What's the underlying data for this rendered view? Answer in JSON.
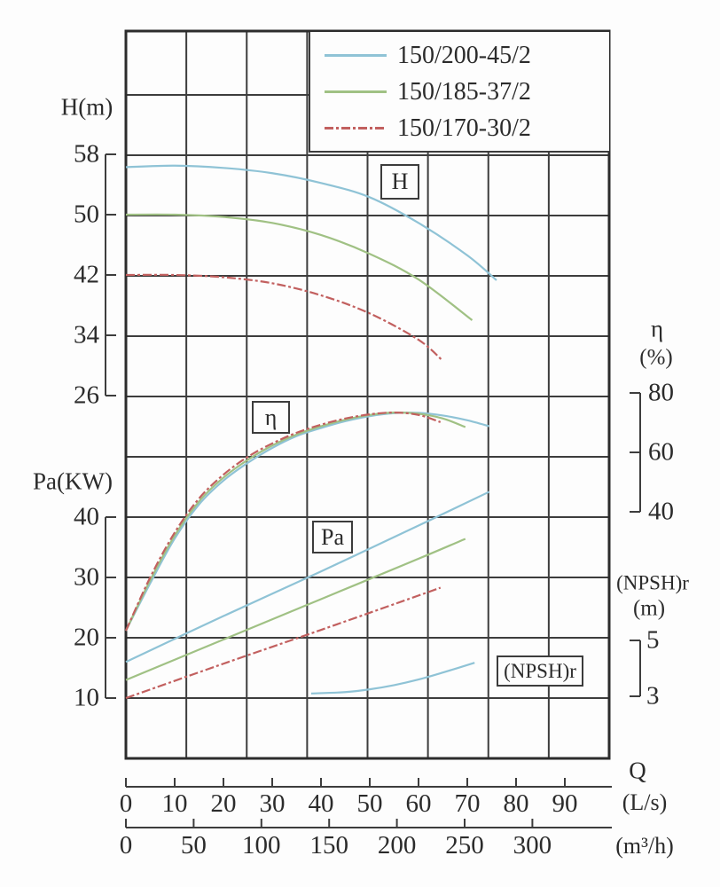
{
  "figure": {
    "background": "#fdfdfd",
    "grid_color": "#3d3d3d",
    "border_color": "#2c2c2c",
    "text_color": "#2b2b2b"
  },
  "legend": {
    "entries": [
      {
        "label": "150/200-45/2",
        "color": "#8fc3d6",
        "line_style": "solid"
      },
      {
        "label": "150/185-37/2",
        "color": "#a0c184",
        "line_style": "solid"
      },
      {
        "label": "150/170-30/2",
        "color": "#c2605f",
        "line_style": "dashdot"
      }
    ]
  },
  "axes": {
    "head": {
      "title": "H(m)",
      "ticks": [
        58,
        50,
        42,
        34,
        26
      ]
    },
    "power": {
      "title": "Pa(KW)",
      "ticks": [
        40,
        30,
        20,
        10
      ]
    },
    "efficiency": {
      "symbol": "η",
      "unit": "(%)",
      "ticks": [
        80,
        60,
        40
      ]
    },
    "npsh": {
      "title": "(NPSH)r",
      "unit": "(m)",
      "ticks": [
        5,
        3
      ]
    },
    "flow": {
      "symbol": "Q",
      "unit_ls": "(L/s)",
      "ticks_ls": [
        0,
        10,
        20,
        30,
        40,
        50,
        60,
        70,
        80,
        90
      ],
      "unit_m3h": "(m³/h)",
      "ticks_m3h": [
        0,
        50,
        100,
        150,
        200,
        250,
        300
      ]
    }
  },
  "annotations": {
    "h_box": "H",
    "eta_box": "η",
    "pa_box": "Pa",
    "npsh_box": "(NPSH)r"
  },
  "chart_data": {
    "type": "line",
    "title": "",
    "xlabel": "Q",
    "x_units": [
      "L/s",
      "m³/h"
    ],
    "x_range_ls": [
      0,
      99
    ],
    "grid": true,
    "legend_position": "top-right",
    "quantities": {
      "H": {
        "label": "H",
        "unit": "m",
        "axis_ticks": [
          58,
          50,
          42,
          34,
          26
        ]
      },
      "Pa": {
        "label": "Pa",
        "unit": "KW",
        "axis_ticks": [
          40,
          30,
          20,
          10
        ]
      },
      "eta": {
        "label": "η",
        "unit": "%",
        "axis_ticks": [
          80,
          60,
          40
        ]
      },
      "npsh": {
        "label": "(NPSH)r",
        "unit": "m",
        "axis_ticks": [
          5,
          3
        ]
      }
    },
    "series": [
      {
        "pump": "150/200-45/2",
        "quantity": "H",
        "points": [
          [
            0,
            56.3
          ],
          [
            10,
            56.5
          ],
          [
            20,
            56.2
          ],
          [
            30,
            55.5
          ],
          [
            40,
            54.2
          ],
          [
            50,
            52.3
          ],
          [
            60,
            48.9
          ],
          [
            70,
            44.6
          ],
          [
            76,
            41.3
          ]
        ]
      },
      {
        "pump": "150/185-37/2",
        "quantity": "H",
        "points": [
          [
            0,
            50
          ],
          [
            10,
            50
          ],
          [
            20,
            49.7
          ],
          [
            30,
            48.9
          ],
          [
            40,
            47.3
          ],
          [
            50,
            44.8
          ],
          [
            60,
            41.4
          ],
          [
            71,
            36
          ]
        ]
      },
      {
        "pump": "150/170-30/2",
        "quantity": "H",
        "points": [
          [
            0,
            42
          ],
          [
            10,
            42
          ],
          [
            20,
            41.7
          ],
          [
            30,
            40.9
          ],
          [
            40,
            39.3
          ],
          [
            50,
            36.9
          ],
          [
            60,
            33.4
          ],
          [
            65,
            30.6
          ]
        ]
      },
      {
        "pump": "150/200-45/2",
        "quantity": "eta",
        "points": [
          [
            0,
            0
          ],
          [
            5,
            16
          ],
          [
            10,
            31
          ],
          [
            15,
            42.5
          ],
          [
            20,
            50.5
          ],
          [
            25,
            56.5
          ],
          [
            30,
            61.5
          ],
          [
            35,
            65.5
          ],
          [
            40,
            68.2
          ],
          [
            45,
            70.5
          ],
          [
            50,
            72.2
          ],
          [
            55,
            73.2
          ],
          [
            60,
            73.3
          ],
          [
            65,
            72.4
          ],
          [
            70,
            70.8
          ],
          [
            74.5,
            68.8
          ]
        ]
      },
      {
        "pump": "150/185-37/2",
        "quantity": "eta",
        "points": [
          [
            0,
            0
          ],
          [
            5,
            17
          ],
          [
            10,
            32
          ],
          [
            15,
            43.5
          ],
          [
            20,
            51.5
          ],
          [
            25,
            57.5
          ],
          [
            30,
            62.3
          ],
          [
            35,
            66
          ],
          [
            40,
            68.8
          ],
          [
            45,
            71
          ],
          [
            50,
            72.6
          ],
          [
            55,
            73.4
          ],
          [
            60,
            73
          ],
          [
            65,
            71.4
          ],
          [
            69.6,
            68.5
          ]
        ]
      },
      {
        "pump": "150/170-30/2",
        "quantity": "eta",
        "points": [
          [
            0,
            0
          ],
          [
            5,
            18
          ],
          [
            10,
            33
          ],
          [
            15,
            44.5
          ],
          [
            20,
            52.5
          ],
          [
            25,
            58.5
          ],
          [
            30,
            63
          ],
          [
            35,
            66.6
          ],
          [
            40,
            69.3
          ],
          [
            45,
            71.4
          ],
          [
            50,
            72.8
          ],
          [
            55,
            73.4
          ],
          [
            60,
            72.6
          ],
          [
            64.5,
            70.2
          ]
        ]
      },
      {
        "pump": "150/200-45/2",
        "quantity": "Pa",
        "points": [
          [
            0,
            16
          ],
          [
            20,
            23.6
          ],
          [
            40,
            31
          ],
          [
            60,
            38.6
          ],
          [
            74.5,
            44.2
          ]
        ]
      },
      {
        "pump": "150/185-37/2",
        "quantity": "Pa",
        "points": [
          [
            0,
            13
          ],
          [
            20,
            19.7
          ],
          [
            40,
            26.4
          ],
          [
            60,
            33.1
          ],
          [
            69.6,
            36.4
          ]
        ]
      },
      {
        "pump": "150/170-30/2",
        "quantity": "Pa",
        "points": [
          [
            0,
            10
          ],
          [
            20,
            15.7
          ],
          [
            40,
            21.3
          ],
          [
            60,
            27
          ],
          [
            64.5,
            28.3
          ]
        ]
      },
      {
        "pump": "150/200-45/2",
        "quantity": "npsh",
        "points": [
          [
            38,
            3.1
          ],
          [
            45,
            3.15
          ],
          [
            50,
            3.25
          ],
          [
            55,
            3.4
          ],
          [
            60,
            3.6
          ],
          [
            65,
            3.85
          ],
          [
            71.5,
            4.2
          ]
        ]
      }
    ]
  }
}
